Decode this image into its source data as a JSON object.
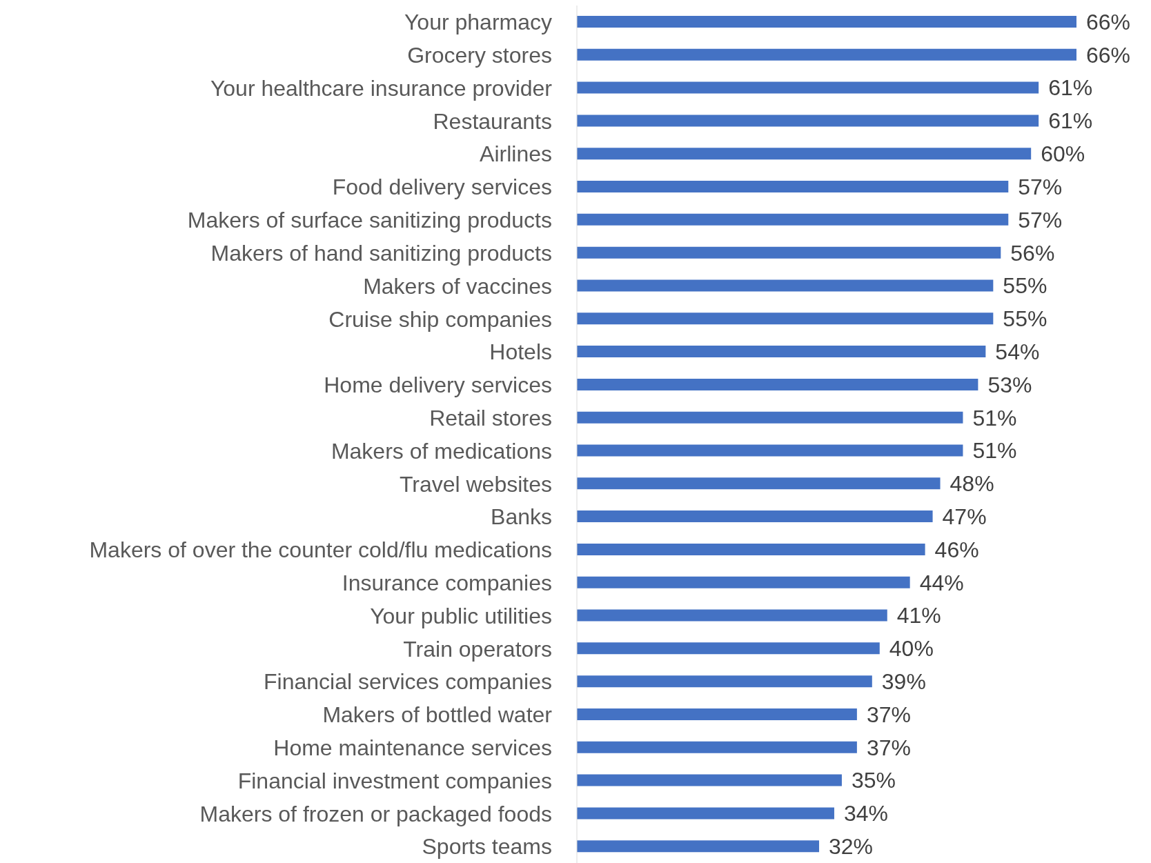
{
  "chart_data": {
    "type": "bar",
    "orientation": "horizontal",
    "color": "#4472c4",
    "categories": [
      "Your pharmacy",
      "Grocery stores",
      "Your healthcare insurance provider",
      "Restaurants",
      "Airlines",
      "Food delivery services",
      "Makers of surface sanitizing products",
      "Makers of hand sanitizing products",
      "Makers of vaccines",
      "Cruise ship companies",
      "Hotels",
      "Home delivery services",
      "Retail stores",
      "Makers of medications",
      "Travel websites",
      "Banks",
      "Makers of over the counter cold/flu medications",
      "Insurance companies",
      "Your public utilities",
      "Train operators",
      "Financial services companies",
      "Makers of bottled water",
      "Home maintenance services",
      "Financial investment companies",
      "Makers of frozen or packaged foods",
      "Sports teams"
    ],
    "values": [
      66,
      66,
      61,
      61,
      60,
      57,
      57,
      56,
      55,
      55,
      54,
      53,
      51,
      51,
      48,
      47,
      46,
      44,
      41,
      40,
      39,
      37,
      37,
      35,
      34,
      32
    ],
    "value_labels": [
      "66%",
      "66%",
      "61%",
      "61%",
      "60%",
      "57%",
      "57%",
      "56%",
      "55%",
      "55%",
      "54%",
      "53%",
      "51%",
      "51%",
      "48%",
      "47%",
      "46%",
      "44%",
      "41%",
      "40%",
      "39%",
      "37%",
      "37%",
      "35%",
      "34%",
      "32%"
    ]
  }
}
